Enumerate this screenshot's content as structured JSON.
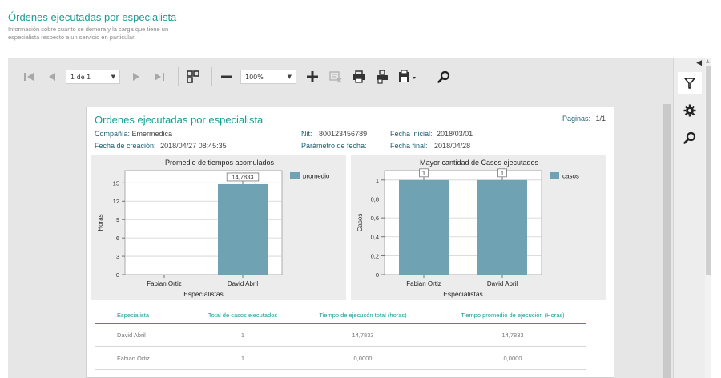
{
  "page": {
    "title": "Órdenes ejecutadas por especialista",
    "description": "Información sobre cuanto se demora y la carga que tiene un especialista respecto a un servicio en particular."
  },
  "toolbar": {
    "page_select": "1 de 1",
    "zoom_select": "100%",
    "icons": [
      "first-page-icon",
      "prev-page-icon",
      "next-page-icon",
      "last-page-icon",
      "multipage-icon",
      "zoom-out-icon",
      "zoom-in-icon",
      "clear-highlights-icon",
      "print-icon",
      "print-page-icon",
      "export-icon",
      "search-icon"
    ]
  },
  "side_panel": {
    "icons": [
      "filter-icon",
      "settings-icon",
      "search-icon"
    ]
  },
  "report": {
    "title": "Ordenes ejecutadas por especialista",
    "pages_label": "Paginas:",
    "pages_value": "1/1",
    "company_label": "Compañía:",
    "company_value": "Emermedica",
    "created_label": "Fecha de creación:",
    "created_value": "2018/04/27 08:45:35",
    "nit_label": "Nit:",
    "nit_value": "800123456789",
    "param_label": "Parámetro de fecha:",
    "start_label": "Fecha inicial:",
    "start_value": "2018/03/01",
    "end_label": "Fecha final:",
    "end_value": "2018/04/28"
  },
  "chart_data": [
    {
      "type": "bar",
      "title": "Promedio de tiempos acomulados",
      "xlabel": "Especialistas",
      "ylabel": "Horas",
      "categories": [
        "Fabian Ortiz",
        "David Abril"
      ],
      "series": [
        {
          "name": "promedio",
          "values": [
            0,
            14.7833
          ]
        }
      ],
      "data_labels": [
        "",
        "14,7833"
      ],
      "yticks": [
        "0",
        "3",
        "6",
        "9",
        "12",
        "15"
      ],
      "ylim": [
        0,
        17
      ],
      "legend": "top-right",
      "grid": true,
      "color": "#6fa2b2"
    },
    {
      "type": "bar",
      "title": "Mayor cantidad de Casos ejecutados",
      "xlabel": "Especialistas",
      "ylabel": "Casos",
      "categories": [
        "Fabian Ortiz",
        "David Abril"
      ],
      "series": [
        {
          "name": "casos",
          "values": [
            1,
            1
          ]
        }
      ],
      "data_labels": [
        "1",
        "1"
      ],
      "yticks": [
        "0",
        "0,2",
        "0,4",
        "0,6",
        "0,8",
        "1"
      ],
      "ylim": [
        0,
        1.1
      ],
      "legend": "top-right",
      "grid": true,
      "color": "#6fa2b2"
    }
  ],
  "table": {
    "headers": [
      "Especialista",
      "Total de casos ejecutados",
      "Tiempo de ejecucón total (horas)",
      "Tiempo promedio de ejecución (Horas)"
    ],
    "rows": [
      [
        "David Abril",
        "1",
        "14,7833",
        "14,7833"
      ],
      [
        "Fabian Ortiz",
        "1",
        "0,0000",
        "0,0000"
      ]
    ]
  }
}
